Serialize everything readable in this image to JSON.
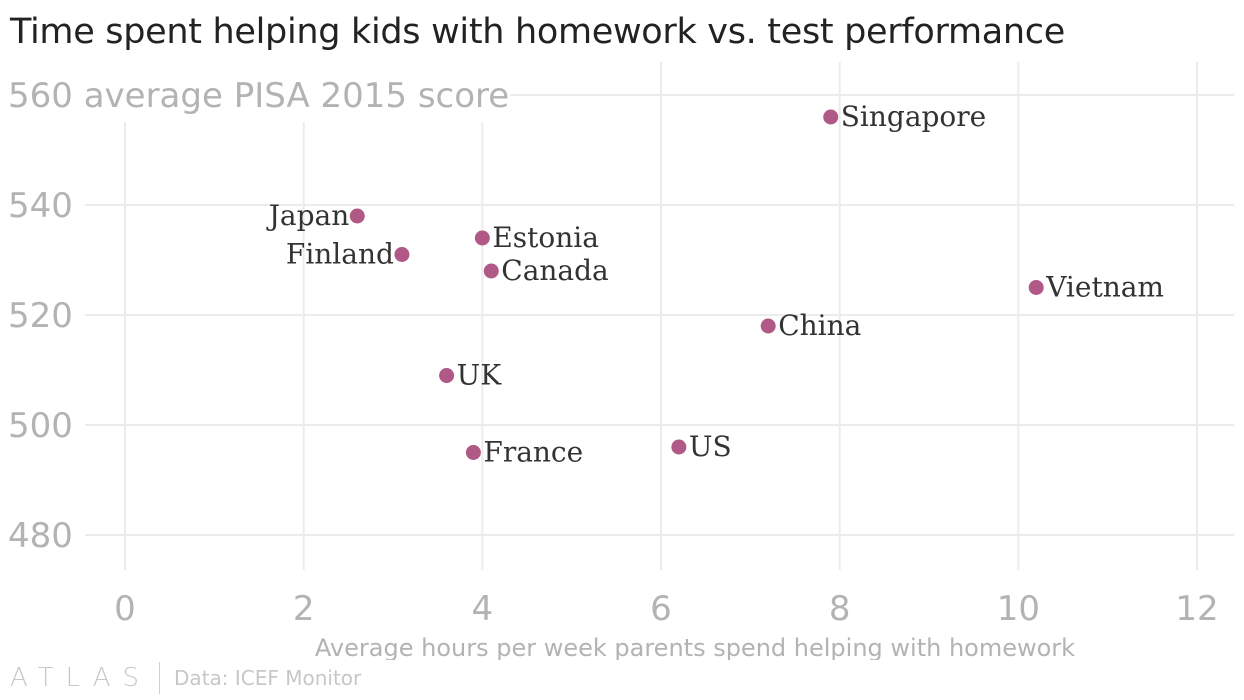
{
  "title": "Time spent helping kids with homework vs. test performance",
  "footer": {
    "logo": "ATLAS",
    "source": "Data: ICEF Monitor"
  },
  "colors": {
    "point": "#b05886",
    "grid": "#ececec",
    "tick": "#b3b3b3"
  },
  "chart_data": {
    "type": "scatter",
    "ylabel": "average PISA 2015 score",
    "xlabel": "Average hours per week parents spend helping with homework",
    "xlim": [
      0,
      12
    ],
    "ylim": [
      475,
      565
    ],
    "xticks": [
      0,
      2,
      4,
      6,
      8,
      10,
      12
    ],
    "yticks": [
      480,
      500,
      520,
      540,
      560
    ],
    "grid": true,
    "points": [
      {
        "label": "Singapore",
        "x": 7.9,
        "y": 556,
        "anchor": "right"
      },
      {
        "label": "Japan",
        "x": 2.6,
        "y": 538,
        "anchor": "left"
      },
      {
        "label": "Estonia",
        "x": 4.0,
        "y": 534,
        "anchor": "right"
      },
      {
        "label": "Finland",
        "x": 3.1,
        "y": 531,
        "anchor": "left"
      },
      {
        "label": "Canada",
        "x": 4.1,
        "y": 528,
        "anchor": "right"
      },
      {
        "label": "Vietnam",
        "x": 10.2,
        "y": 525,
        "anchor": "right"
      },
      {
        "label": "China",
        "x": 7.2,
        "y": 518,
        "anchor": "right"
      },
      {
        "label": "UK",
        "x": 3.6,
        "y": 509,
        "anchor": "right"
      },
      {
        "label": "US",
        "x": 6.2,
        "y": 496,
        "anchor": "right"
      },
      {
        "label": "France",
        "x": 3.9,
        "y": 495,
        "anchor": "right"
      }
    ]
  }
}
